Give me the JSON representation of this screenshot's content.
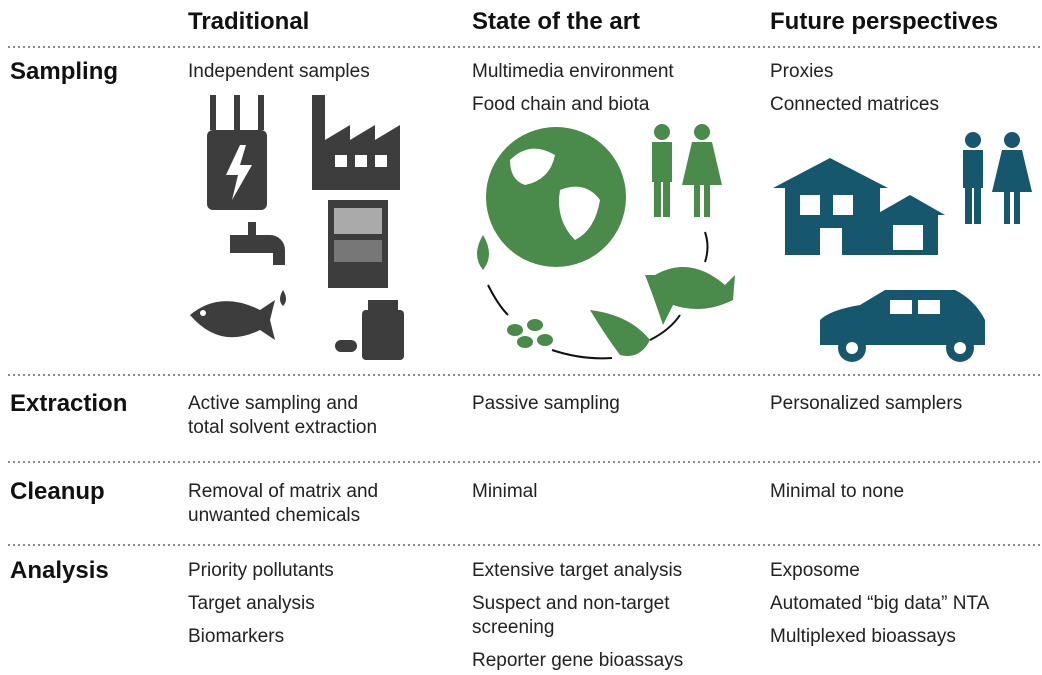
{
  "header": {
    "columns": [
      "Traditional",
      "State of the art",
      "Future perspectives"
    ]
  },
  "rows": [
    {
      "label": "Sampling",
      "cells": [
        [
          [
            "Independent samples"
          ]
        ],
        [
          [
            "Multimedia environment"
          ],
          [
            "Food chain and biota"
          ]
        ],
        [
          [
            "Proxies"
          ],
          [
            "Connected matrices"
          ]
        ]
      ]
    },
    {
      "label": "Extraction",
      "cells": [
        [
          [
            "Active sampling and",
            "total solvent extraction"
          ]
        ],
        [
          [
            "Passive sampling"
          ]
        ],
        [
          [
            "Personalized samplers"
          ]
        ]
      ]
    },
    {
      "label": "Cleanup",
      "cells": [
        [
          [
            "Removal of matrix and",
            "unwanted chemicals"
          ]
        ],
        [
          [
            "Minimal"
          ]
        ],
        [
          [
            "Minimal to none"
          ]
        ]
      ]
    },
    {
      "label": "Analysis",
      "cells": [
        [
          [
            "Priority pollutants"
          ],
          [
            "Target analysis"
          ],
          [
            "Biomarkers"
          ]
        ],
        [
          [
            "Extensive target analysis"
          ],
          [
            "Suspect and non-target",
            "screening"
          ],
          [
            "Reporter gene bioassays"
          ]
        ],
        [
          [
            "Exposome"
          ],
          [
            "Automated “big data” NTA"
          ],
          [
            "Multiplexed bioassays"
          ]
        ]
      ]
    }
  ]
}
